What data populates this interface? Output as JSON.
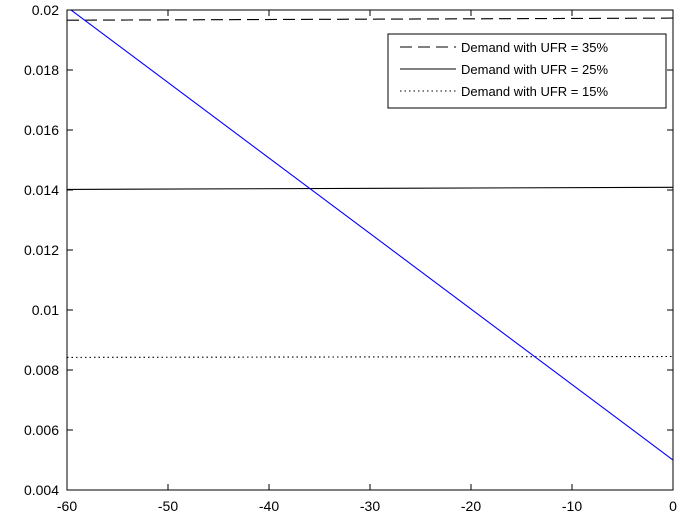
{
  "chart_data": {
    "type": "line",
    "title": "",
    "xlabel": "",
    "ylabel": "",
    "xlim": [
      -60,
      0
    ],
    "ylim": [
      0.004,
      0.02
    ],
    "grid": false,
    "legend_position": "top-right",
    "x_ticks": [
      -60,
      -50,
      -40,
      -30,
      -20,
      -10,
      0
    ],
    "x_tick_labels": [
      "-60",
      "-50",
      "-40",
      "-30",
      "-20",
      "-10",
      "0"
    ],
    "y_ticks": [
      0.004,
      0.006,
      0.008,
      0.01,
      0.012,
      0.014,
      0.016,
      0.018,
      0.02
    ],
    "y_tick_labels": [
      "0.004",
      "0.006",
      "0.008",
      "0.01",
      "0.012",
      "0.014",
      "0.016",
      "0.018",
      "0.02"
    ],
    "series": [
      {
        "name": "Demand with UFR = 35%",
        "x": [
          -60,
          0
        ],
        "y": [
          0.01966,
          0.01973
        ],
        "color": "#000000",
        "style": "dashed",
        "in_legend": true
      },
      {
        "name": "Demand with UFR = 25%",
        "x": [
          -60,
          0
        ],
        "y": [
          0.01402,
          0.01409
        ],
        "color": "#000000",
        "style": "solid",
        "in_legend": true
      },
      {
        "name": "Demand with UFR = 15%",
        "x": [
          -60,
          0
        ],
        "y": [
          0.00842,
          0.00845
        ],
        "color": "#000000",
        "style": "dotted",
        "in_legend": true
      },
      {
        "x": [
          -60,
          0
        ],
        "y": [
          0.0201,
          0.005
        ],
        "color": "#0000ff",
        "style": "solid",
        "in_legend": false
      }
    ]
  }
}
